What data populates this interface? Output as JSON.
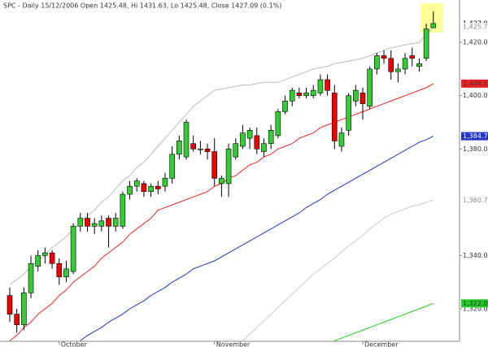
{
  "chart_data": {
    "type": "candlestick",
    "title": "SPC - Daily 15/12/2006 Open 1425.48, Hi 1431.63, Lo 1425.48, Close 1427.09 (0.1%)",
    "categories": [
      null,
      null,
      null,
      null,
      null,
      null,
      null,
      "October",
      null,
      null,
      null,
      null,
      null,
      null,
      null,
      null,
      null,
      null,
      null,
      null,
      null,
      null,
      null,
      null,
      null,
      null,
      null,
      null,
      null,
      "November",
      null,
      null,
      null,
      null,
      null,
      null,
      null,
      null,
      null,
      null,
      null,
      null,
      null,
      null,
      null,
      null,
      null,
      null,
      null,
      null,
      "December",
      null,
      null,
      null,
      null,
      null,
      null,
      null,
      null,
      null,
      null
    ],
    "ylim": [
      1307.8,
      1435.9
    ],
    "yticks": [
      {
        "value": 1320,
        "label": "1,320.00"
      },
      {
        "value": 1340,
        "label": "1,340.00"
      },
      {
        "value": 1380,
        "label": "1,380.00"
      },
      {
        "value": 1400,
        "label": "1,400.00"
      },
      {
        "value": 1420,
        "label": "1,420.00"
      }
    ],
    "up_color": "#33cc33",
    "down_color": "#ee0000",
    "last_close_label": "1,427.09",
    "open": [
      1325,
      1318,
      1314,
      1326,
      1336,
      1340,
      1341,
      1337,
      1332,
      1334,
      1351,
      1354,
      1351,
      1351,
      1354,
      1351,
      1351,
      1363,
      1366,
      1367,
      1364,
      1366,
      1366,
      1369,
      1378,
      1377,
      1382,
      1380,
      1380,
      1379,
      1367,
      1367,
      1377,
      1381,
      1384,
      1385,
      1379,
      1382,
      1385,
      1394,
      1398,
      1401,
      1400,
      1400,
      1401,
      1406,
      1401,
      1381,
      1387,
      1398,
      1401,
      1396,
      1410,
      1415,
      1414,
      1409,
      1410,
      1415,
      1411,
      1414,
      1425.48
    ],
    "high": [
      1328,
      1320,
      1328,
      1340,
      1342,
      1343,
      1342,
      1339,
      1338,
      1352,
      1356,
      1356,
      1354,
      1355,
      1355,
      1356,
      1364,
      1368,
      1369,
      1368,
      1367,
      1368,
      1371,
      1381,
      1385,
      1391,
      1385,
      1383,
      1382,
      1384,
      1370,
      1382,
      1384,
      1389,
      1388,
      1388,
      1384,
      1389,
      1395,
      1400,
      1403,
      1403,
      1403,
      1404,
      1408,
      1408,
      1404,
      1388,
      1401,
      1404,
      1403,
      1411,
      1416,
      1417,
      1417,
      1412,
      1416,
      1418,
      1414,
      1427,
      1431.63
    ],
    "low": [
      1315,
      1311,
      1312,
      1324,
      1334,
      1337,
      1335,
      1329,
      1330,
      1333,
      1349,
      1349,
      1348,
      1349,
      1343,
      1349,
      1350,
      1361,
      1364,
      1362,
      1362,
      1363,
      1364,
      1367,
      1376,
      1376,
      1379,
      1378,
      1376,
      1366,
      1362,
      1362,
      1376,
      1380,
      1380,
      1378,
      1377,
      1380,
      1384,
      1393,
      1396,
      1399,
      1399,
      1399,
      1400,
      1400,
      1380,
      1379,
      1385,
      1396,
      1391,
      1395,
      1408,
      1412,
      1406,
      1405,
      1408,
      1411,
      1409,
      1413,
      1425.48
    ],
    "close": [
      1318,
      1314,
      1326,
      1337,
      1340,
      1341,
      1337,
      1332,
      1335,
      1351,
      1354,
      1351,
      1352,
      1353,
      1351,
      1354,
      1363,
      1366,
      1368,
      1364,
      1366,
      1365,
      1369,
      1378,
      1383,
      1390,
      1380,
      1380,
      1379,
      1369,
      1369,
      1380,
      1382,
      1386,
      1387,
      1380,
      1382,
      1387,
      1394,
      1398,
      1402,
      1400,
      1401,
      1402,
      1406,
      1402,
      1383,
      1386,
      1400,
      1402,
      1397,
      1410,
      1415,
      1414,
      1409,
      1410,
      1414,
      1414,
      1412,
      1425,
      1427.09
    ],
    "series": [
      {
        "color": "#bbbbbb",
        "label_bg": "#ffffff",
        "label_text": "#888888",
        "last_label": "1,425.78",
        "values": [
          1329,
          1331,
          1333,
          1336,
          1338,
          1340,
          1343,
          1345,
          1347,
          1350,
          1352,
          1355,
          1357,
          1360,
          1362,
          1365,
          1368,
          1370,
          1373,
          1375,
          1378,
          1381,
          1384,
          1387,
          1390,
          1393,
          1396,
          1398,
          1400,
          1402,
          1402.5,
          1403,
          1403.5,
          1404,
          1404,
          1404.5,
          1405,
          1405,
          1405,
          1406,
          1407,
          1408,
          1409,
          1410,
          1410.5,
          1411,
          1412,
          1412.5,
          1413,
          1413.5,
          1414,
          1415,
          1416,
          1417,
          1418,
          1418.5,
          1419,
          1419.5,
          1420,
          1423,
          1425.78
        ]
      },
      {
        "color": "#ee2222",
        "label_bg": "#ee2222",
        "label_text": "#333333",
        "last_label": "1,404.52",
        "values": [
          1308,
          1310,
          1313,
          1315,
          1318,
          1320,
          1322,
          1325,
          1327,
          1330,
          1332,
          1334,
          1336,
          1339,
          1341,
          1343,
          1345,
          1348,
          1350,
          1352,
          1354,
          1357,
          1358,
          1359,
          1360,
          1361,
          1362,
          1363,
          1364,
          1366,
          1367,
          1369,
          1370,
          1372,
          1374,
          1375,
          1377,
          1378,
          1380,
          1381,
          1382,
          1384,
          1385,
          1386,
          1388,
          1389,
          1390,
          1391,
          1392,
          1393,
          1394,
          1395,
          1396,
          1397,
          1398,
          1399,
          1400,
          1401,
          1402,
          1403,
          1404.52
        ]
      },
      {
        "color": "#2233cc",
        "label_bg": "#2233cc",
        "label_text": "#ffffff",
        "last_label": "1,384.78",
        "values": [
          null,
          null,
          null,
          null,
          null,
          null,
          null,
          null,
          null,
          null,
          1308,
          1310,
          1311.5,
          1313,
          1315,
          1316.5,
          1318,
          1320,
          1321.5,
          1323,
          1325,
          1326.5,
          1328,
          1330,
          1331.5,
          1333,
          1335,
          1336,
          1337,
          1338,
          1339.5,
          1341,
          1342.5,
          1344,
          1345.5,
          1347,
          1348.5,
          1350,
          1351.5,
          1353,
          1354.5,
          1356,
          1358,
          1359.5,
          1361,
          1363,
          1364.5,
          1366,
          1367.5,
          1369,
          1370.5,
          1372,
          1373.5,
          1375,
          1376.5,
          1378,
          1379.5,
          1381,
          1382.5,
          1383.5,
          1384.78
        ]
      },
      {
        "color": "#cccccc",
        "label_bg": "#ffffff",
        "label_text": "#888888",
        "last_label": "1,360.71",
        "values": [
          null,
          null,
          null,
          null,
          null,
          null,
          null,
          null,
          null,
          null,
          null,
          null,
          null,
          null,
          null,
          null,
          null,
          null,
          null,
          null,
          null,
          null,
          null,
          null,
          null,
          null,
          null,
          null,
          null,
          null,
          null,
          null,
          null,
          1308,
          1310.5,
          1313,
          1315.5,
          1318,
          1320.5,
          1323,
          1325.5,
          1328,
          1330.5,
          1333,
          1335,
          1337,
          1339,
          1341.5,
          1343.5,
          1345.5,
          1347.5,
          1350,
          1352,
          1354,
          1355.5,
          1356.5,
          1357.5,
          1358.5,
          1359,
          1360,
          1360.71
        ]
      },
      {
        "color": "#22cc22",
        "label_bg": "#22cc22",
        "label_text": "#333333",
        "last_label": "1,322.04",
        "values": [
          null,
          null,
          null,
          null,
          null,
          null,
          null,
          null,
          null,
          null,
          null,
          null,
          null,
          null,
          null,
          null,
          null,
          null,
          null,
          null,
          null,
          null,
          null,
          null,
          null,
          null,
          null,
          null,
          null,
          null,
          null,
          null,
          null,
          null,
          null,
          null,
          null,
          null,
          null,
          null,
          null,
          null,
          null,
          null,
          null,
          null,
          1308,
          1309,
          1310,
          1311,
          1312,
          1313,
          1314,
          1315,
          1316,
          1317,
          1318,
          1319,
          1320,
          1321,
          1322.04
        ]
      }
    ]
  }
}
